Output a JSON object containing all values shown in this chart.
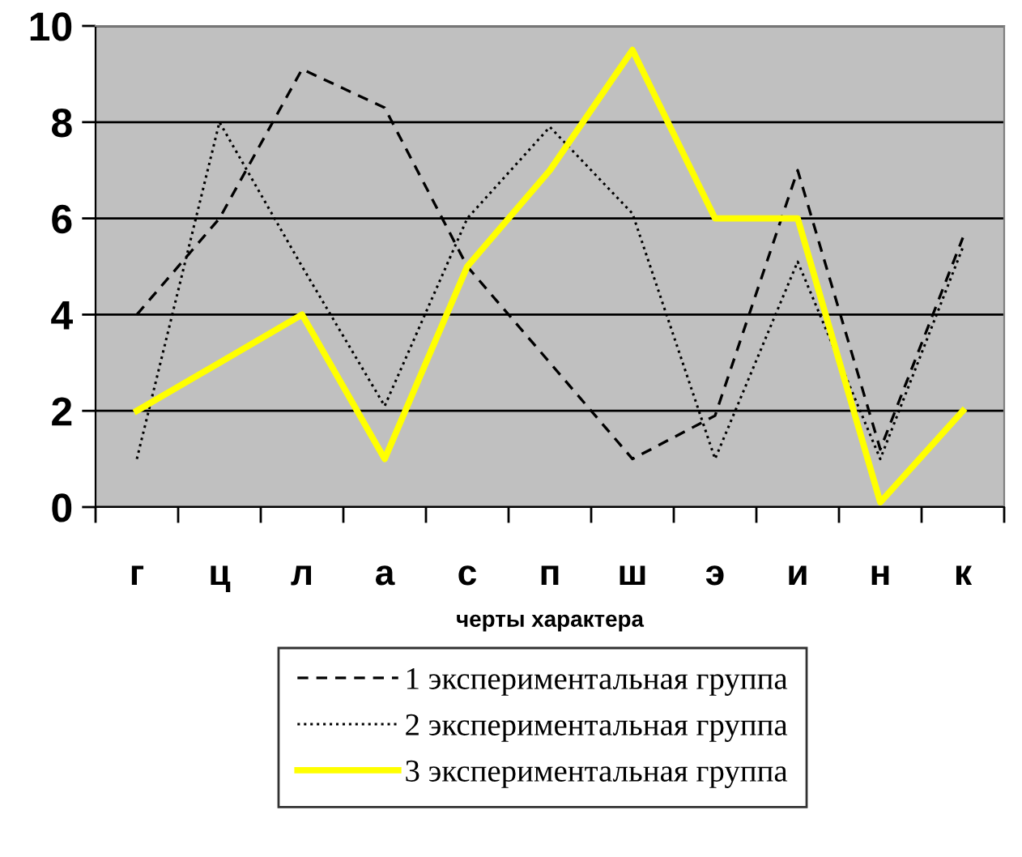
{
  "chart_data": {
    "type": "line",
    "xlabel": "черты характера",
    "categories": [
      "г",
      "ц",
      "л",
      "а",
      "с",
      "п",
      "ш",
      "э",
      "и",
      "н",
      "к"
    ],
    "series": [
      {
        "name": "1 экспериментальная группа",
        "color": "#000000",
        "line_style": "dashed",
        "values": [
          4,
          6,
          9.1,
          8.3,
          5,
          3,
          1,
          1.9,
          7,
          1.2,
          5.6
        ]
      },
      {
        "name": "2 экспериментальная группа",
        "color": "#000000",
        "line_style": "dotted",
        "values": [
          1,
          8,
          5,
          2.1,
          6,
          7.9,
          6.1,
          1,
          5.1,
          1,
          5.4
        ]
      },
      {
        "name": "3 экспериментальная группа",
        "color": "#ffff00",
        "line_style": "solid",
        "values": [
          2,
          3,
          4,
          1,
          5,
          7,
          9.5,
          6,
          6,
          0.1,
          2
        ]
      }
    ],
    "ylim": [
      0,
      10
    ],
    "yticks": [
      0,
      2,
      4,
      6,
      8,
      10
    ],
    "grid": "y",
    "legend": "bottom"
  }
}
